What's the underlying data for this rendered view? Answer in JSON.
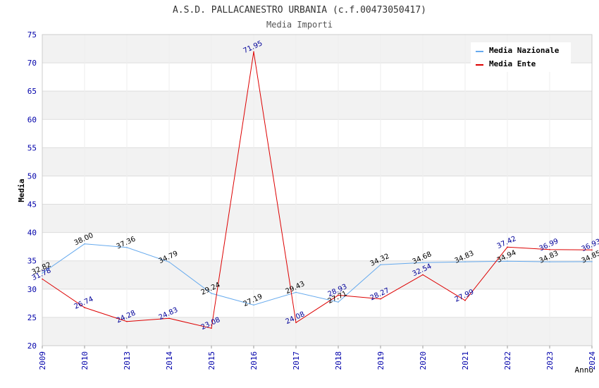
{
  "chart_data": {
    "type": "line",
    "title": "A.S.D. PALLACANESTRO URBANIA (c.f.00473050417)",
    "subtitle": "Media Importi",
    "xlabel": "Anno",
    "ylabel": "Media",
    "ylim": [
      20,
      75
    ],
    "yticks": [
      "20",
      "25",
      "30",
      "35",
      "40",
      "45",
      "50",
      "55",
      "60",
      "65",
      "70",
      "75"
    ],
    "categories": [
      "2009",
      "2010",
      "2013",
      "2014",
      "2015",
      "2016",
      "2017",
      "2018",
      "2019",
      "2020",
      "2021",
      "2022",
      "2023",
      "2024"
    ],
    "grid": true,
    "legend_position": "top-right",
    "series": [
      {
        "name": "Media Nazionale",
        "color": "#66aaee",
        "label_color": "#000000",
        "values": [
          32.82,
          38.0,
          37.36,
          34.79,
          29.24,
          27.19,
          29.43,
          27.71,
          34.32,
          34.68,
          34.83,
          34.94,
          34.83,
          34.85
        ],
        "labels": [
          "32.82",
          "38.00",
          "37.36",
          "34.79",
          "29.24",
          "27.19",
          "29.43",
          "27.71",
          "34.32",
          "34.68",
          "34.83",
          "34.94",
          "34.83",
          "34.85"
        ]
      },
      {
        "name": "Media Ente",
        "color": "#dd0000",
        "label_color": "#000099",
        "values": [
          31.78,
          26.74,
          24.28,
          24.83,
          23.08,
          71.95,
          24.08,
          28.93,
          28.27,
          32.54,
          27.99,
          37.42,
          36.99,
          36.93
        ],
        "labels": [
          "31.78",
          "26.74",
          "24.28",
          "24.83",
          "23.08",
          "71.95",
          "24.08",
          "28.93",
          "28.27",
          "32.54",
          "27.99",
          "37.42",
          "36.99",
          "36.93"
        ]
      }
    ]
  }
}
